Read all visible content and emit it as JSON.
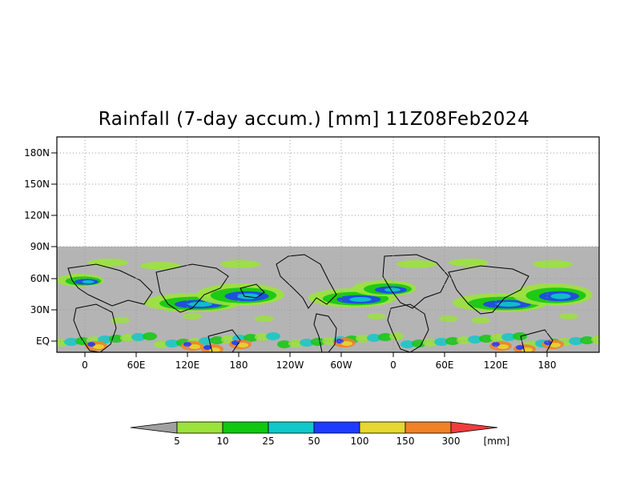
{
  "title": "Rainfall (7-day accum.) [mm] 11Z08Feb2024",
  "map": {
    "lat_labels": [
      "180N",
      "150N",
      "120N",
      "90N",
      "60N",
      "30N",
      "EQ"
    ],
    "lon_labels": [
      "0",
      "60E",
      "120E",
      "180",
      "120W",
      "60W",
      "0",
      "60E",
      "120E",
      "180"
    ],
    "no_data_color": "#b4b4b4",
    "grid": "dotted"
  },
  "colorbar": {
    "unit_label": "[mm]",
    "thresholds": [
      "5",
      "10",
      "25",
      "50",
      "100",
      "150",
      "300"
    ],
    "colors": [
      "#a0a0a0",
      "#9be23c",
      "#10c810",
      "#10c8c8",
      "#1e3cff",
      "#e6d732",
      "#f08228",
      "#f03c3c"
    ]
  }
}
